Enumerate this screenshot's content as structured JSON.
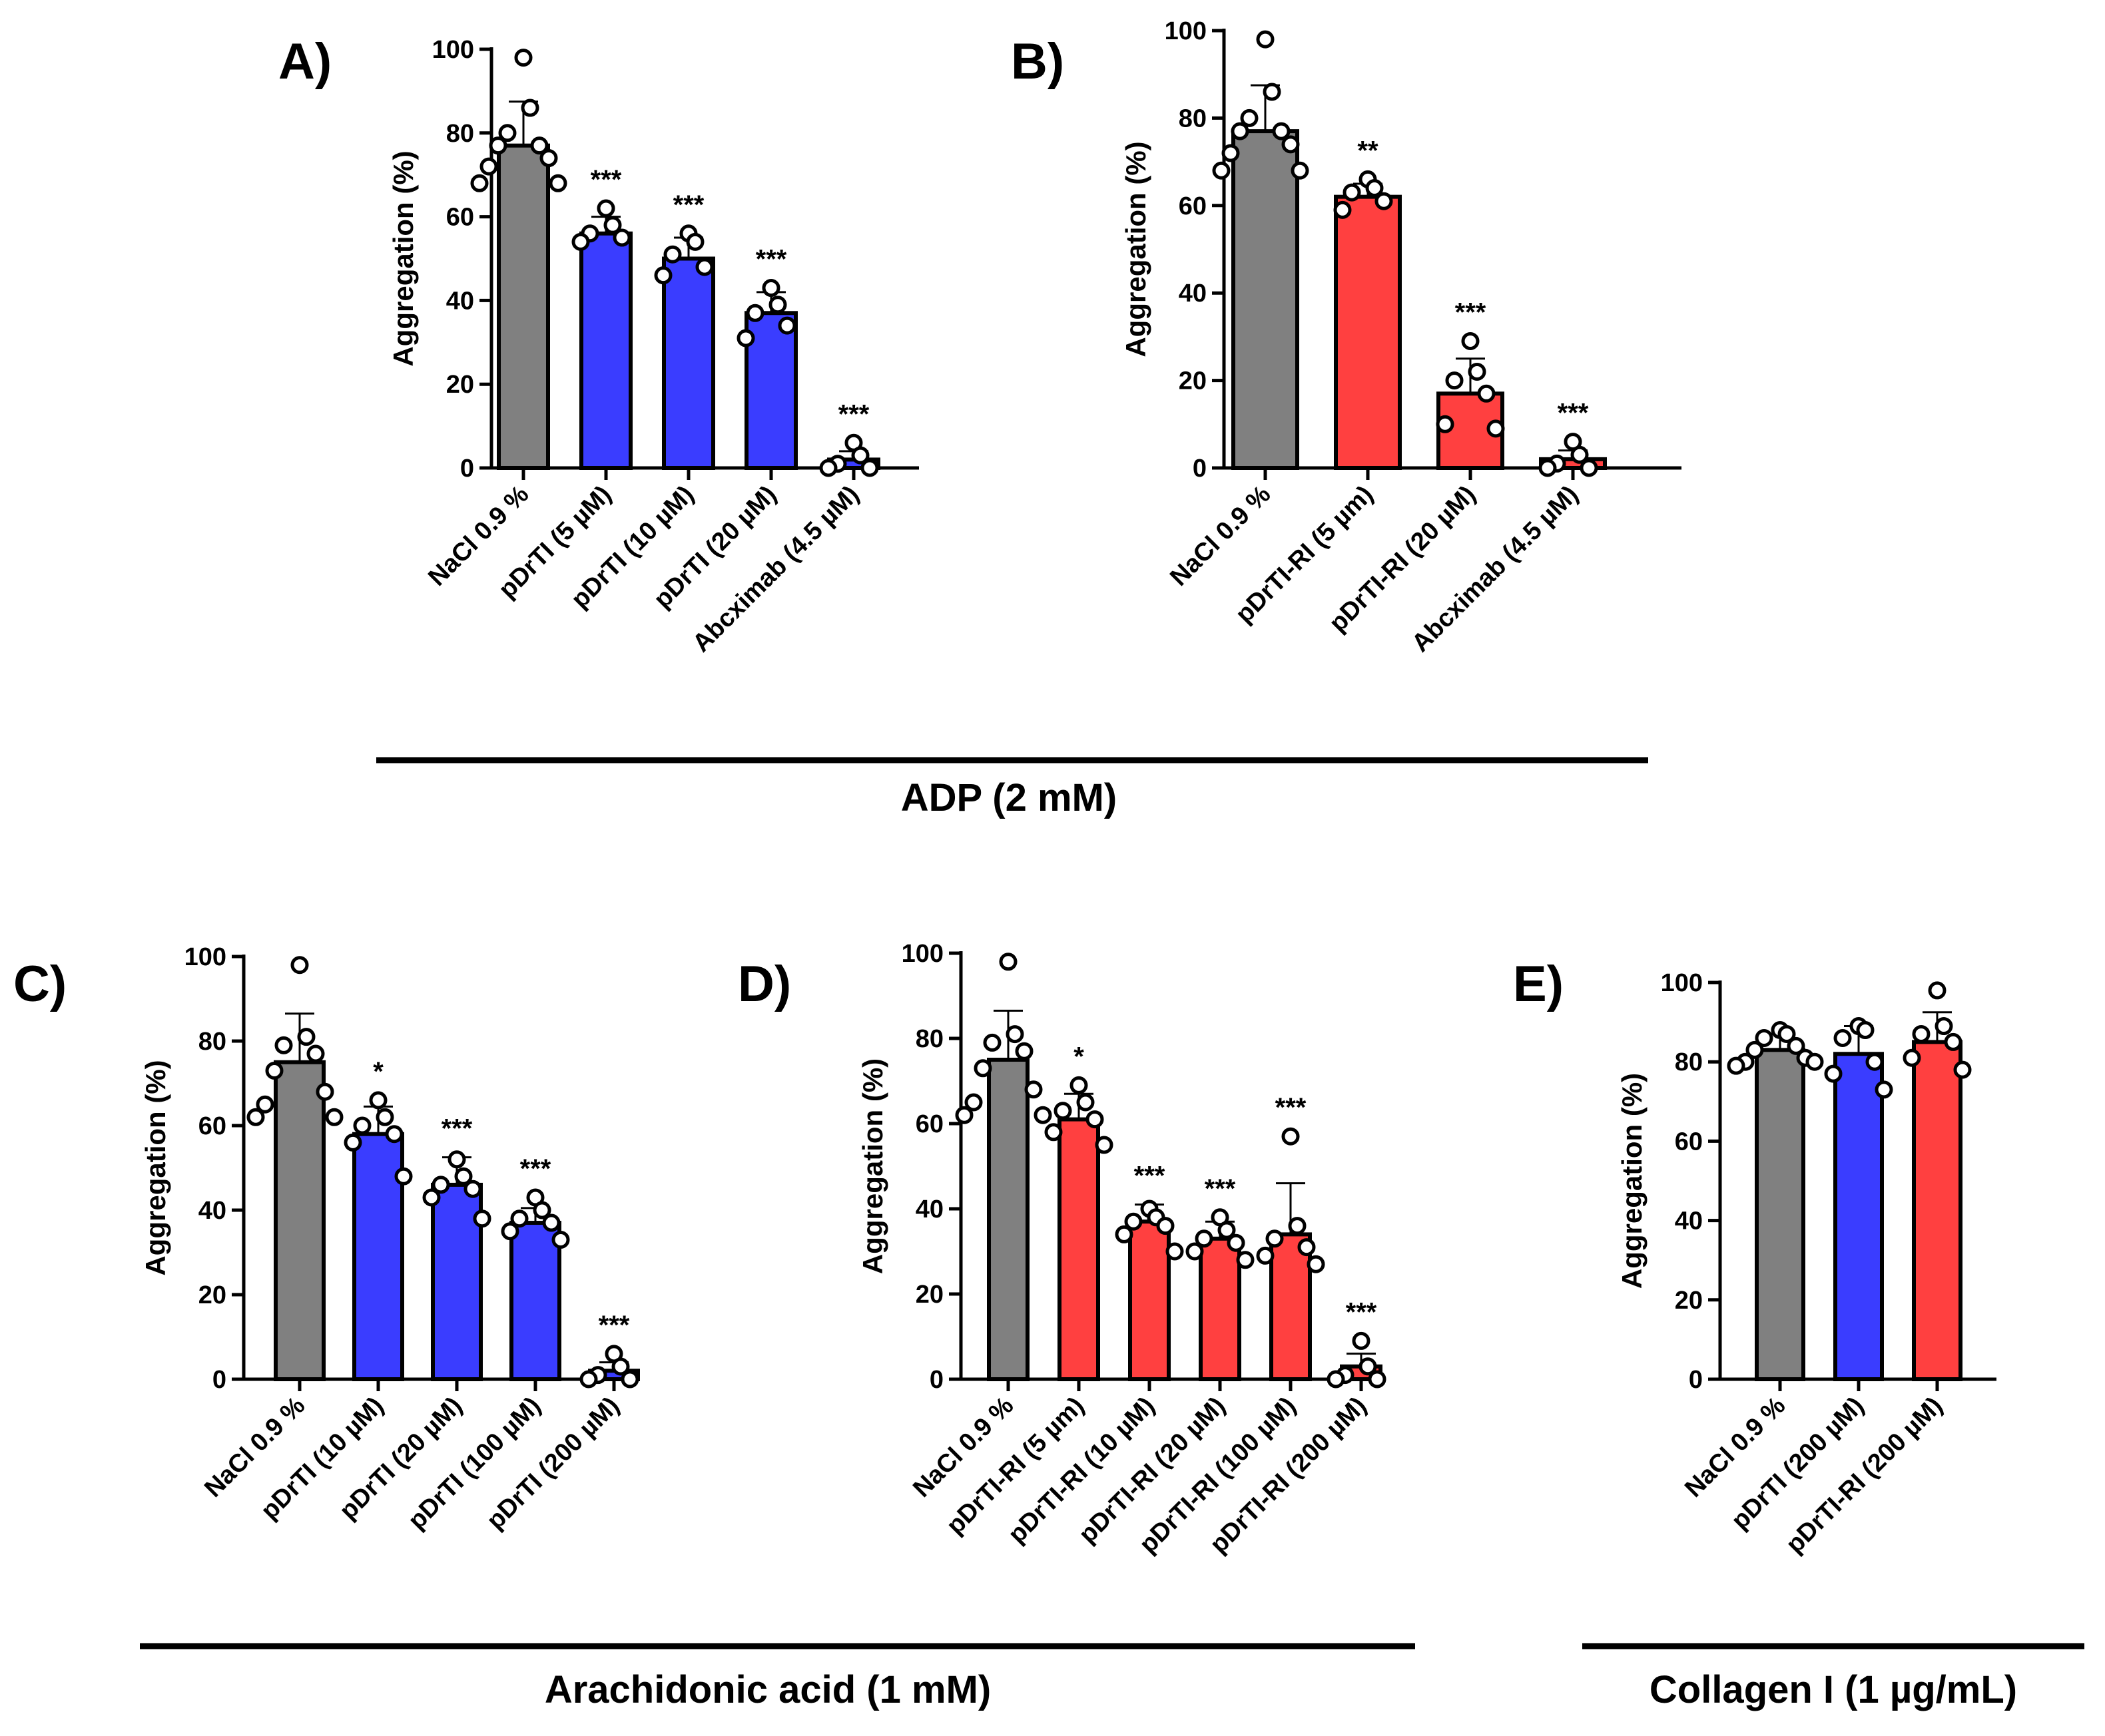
{
  "colors": {
    "gray": "#808080",
    "blue": "#3a3dff",
    "red": "#ff4040",
    "point_fill": "#ffffff",
    "stroke": "#000000"
  },
  "group_labels": {
    "adp": "ADP (2 mM)",
    "aa": "Arachidonic acid (1 mM)",
    "col": "Collagen I (1 µg/mL)"
  },
  "chart_data": [
    {
      "id": "A",
      "panel_label": "A)",
      "type": "bar",
      "ylabel": "Aggregation (%)",
      "ylim": [
        0,
        100
      ],
      "yticks": [
        0,
        20,
        40,
        60,
        80,
        100
      ],
      "categories": [
        "NaCl 0.9 %",
        "pDrTI (5 µM)",
        "pDrTI (10 µM)",
        "pDrTI (20 µM)",
        "Abcximab (4.5 µM)"
      ],
      "values": [
        77,
        56,
        50,
        37,
        2
      ],
      "sd": [
        10.5,
        4,
        5,
        5,
        2
      ],
      "colors": [
        "gray",
        "blue",
        "blue",
        "blue",
        "blue"
      ],
      "significance": [
        "",
        "***",
        "***",
        "***",
        "***"
      ],
      "points": [
        [
          98,
          86,
          80,
          77,
          77,
          74,
          72,
          68,
          68
        ],
        [
          62,
          58,
          56,
          55,
          54
        ],
        [
          56,
          54,
          51,
          48,
          46
        ],
        [
          43,
          39,
          37,
          34,
          31
        ],
        [
          6,
          3,
          1,
          0,
          0
        ]
      ]
    },
    {
      "id": "B",
      "panel_label": "B)",
      "type": "bar",
      "ylabel": "Aggregation (%)",
      "ylim": [
        0,
        100
      ],
      "yticks": [
        0,
        20,
        40,
        60,
        80,
        100
      ],
      "categories": [
        "NaCl 0.9 %",
        "pDrTI-RI (5 µm)",
        "pDrTI-RI (20 µM)",
        "Abcximab (4.5 µM)"
      ],
      "values": [
        77,
        62,
        17,
        2
      ],
      "sd": [
        10.5,
        3,
        8,
        2
      ],
      "colors": [
        "gray",
        "red",
        "red",
        "red"
      ],
      "significance": [
        "",
        "**",
        "***",
        "***"
      ],
      "points": [
        [
          98,
          86,
          80,
          77,
          77,
          74,
          72,
          68,
          68
        ],
        [
          66,
          64,
          63,
          61,
          59
        ],
        [
          29,
          22,
          20,
          17,
          10,
          9
        ],
        [
          6,
          3,
          1,
          0,
          0
        ]
      ]
    },
    {
      "id": "C",
      "panel_label": "C)",
      "type": "bar",
      "ylabel": "Aggregation (%)",
      "ylim": [
        0,
        100
      ],
      "yticks": [
        0,
        20,
        40,
        60,
        80,
        100
      ],
      "categories": [
        "NaCl 0.9 %",
        "pDrTI (10 µM)",
        "pDrTI (20 µM)",
        "pDrTI (100 µM)",
        "pDrTI (200 µM)"
      ],
      "values": [
        75,
        58,
        46,
        37,
        2
      ],
      "sd": [
        11.5,
        6.5,
        6.5,
        3.5,
        2
      ],
      "colors": [
        "gray",
        "blue",
        "blue",
        "blue",
        "blue"
      ],
      "significance": [
        "",
        "*",
        "***",
        "***",
        "***"
      ],
      "points": [
        [
          98,
          81,
          79,
          77,
          73,
          68,
          65,
          62,
          62
        ],
        [
          66,
          62,
          60,
          58,
          56,
          48
        ],
        [
          52,
          48,
          46,
          45,
          43,
          38
        ],
        [
          43,
          40,
          38,
          37,
          35,
          33
        ],
        [
          6,
          3,
          1,
          0,
          0
        ]
      ]
    },
    {
      "id": "D",
      "panel_label": "D)",
      "type": "bar",
      "ylabel": "Aggregation (%)",
      "ylim": [
        0,
        100
      ],
      "yticks": [
        0,
        20,
        40,
        60,
        80,
        100
      ],
      "categories": [
        "NaCl 0.9 %",
        "pDrTI-RI (5 µm)",
        "pDrTI-RI (10 µM)",
        "pDrTI-RI (20 µM)",
        "pDrTI-RI (100 µM)",
        "pDrTI-RI (200 µM)"
      ],
      "values": [
        75,
        61,
        37,
        33,
        34,
        3
      ],
      "sd": [
        11.5,
        6,
        4,
        4,
        12,
        3
      ],
      "colors": [
        "gray",
        "red",
        "red",
        "red",
        "red",
        "red"
      ],
      "significance": [
        "",
        "*",
        "***",
        "***",
        "***",
        "***"
      ],
      "points": [
        [
          98,
          81,
          79,
          77,
          73,
          68,
          65,
          62,
          62
        ],
        [
          69,
          65,
          63,
          61,
          58,
          55
        ],
        [
          40,
          38,
          37,
          36,
          34,
          30
        ],
        [
          38,
          35,
          33,
          32,
          30,
          28
        ],
        [
          57,
          36,
          33,
          31,
          29,
          27
        ],
        [
          9,
          3,
          1,
          0,
          0
        ]
      ]
    },
    {
      "id": "E",
      "panel_label": "E)",
      "type": "bar",
      "ylabel": "Aggregation (%)",
      "ylim": [
        0,
        100
      ],
      "yticks": [
        0,
        20,
        40,
        60,
        80,
        100
      ],
      "categories": [
        "NaCl 0.9 %",
        "pDrTI (200 µM)",
        "pDrTI-RI (200 µM)"
      ],
      "values": [
        83,
        82,
        85
      ],
      "sd": [
        4,
        7,
        7.5
      ],
      "colors": [
        "gray",
        "blue",
        "red"
      ],
      "significance": [
        "",
        "",
        ""
      ],
      "points": [
        [
          88,
          87,
          86,
          84,
          83,
          81,
          80,
          80,
          79
        ],
        [
          89,
          88,
          86,
          80,
          77,
          73
        ],
        [
          98,
          89,
          87,
          85,
          81,
          78
        ]
      ]
    }
  ]
}
